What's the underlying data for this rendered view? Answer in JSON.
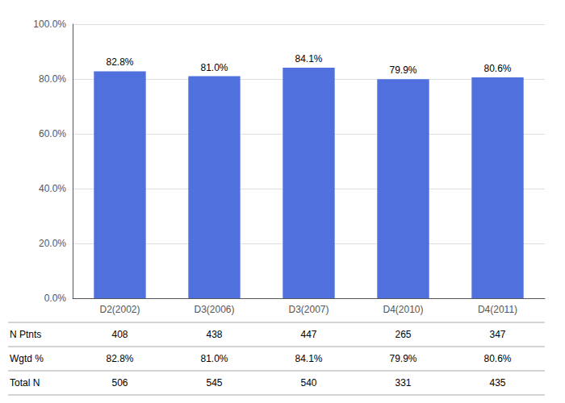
{
  "chart_data": {
    "type": "bar",
    "categories": [
      "D2(2002)",
      "D3(2006)",
      "D3(2007)",
      "D4(2010)",
      "D4(2011)"
    ],
    "values": [
      82.8,
      81.0,
      84.1,
      79.9,
      80.6
    ],
    "data_labels": true,
    "value_labels": [
      "82.8%",
      "81.0%",
      "84.1%",
      "79.9%",
      "80.6%"
    ],
    "ylim": [
      0,
      100
    ],
    "yticks": [
      {
        "value": 0,
        "label": "0.0%"
      },
      {
        "value": 20,
        "label": "20.0%"
      },
      {
        "value": 40,
        "label": "40.0%"
      },
      {
        "value": 60,
        "label": "60.0%"
      },
      {
        "value": 80,
        "label": "80.0%"
      },
      {
        "value": 100,
        "label": "100.0%"
      }
    ],
    "grid": true,
    "table": [
      {
        "label": "N Ptnts",
        "values": [
          408,
          438,
          447,
          265,
          347
        ]
      },
      {
        "label": "Wgtd %",
        "values": [
          82.8,
          81.0,
          84.1,
          79.9,
          80.6
        ],
        "value_labels": [
          "82.8%",
          "81.0%",
          "84.1%",
          "79.9%",
          "80.6%"
        ]
      },
      {
        "label": "Total N",
        "values": [
          506,
          545,
          540,
          331,
          435
        ]
      }
    ]
  }
}
